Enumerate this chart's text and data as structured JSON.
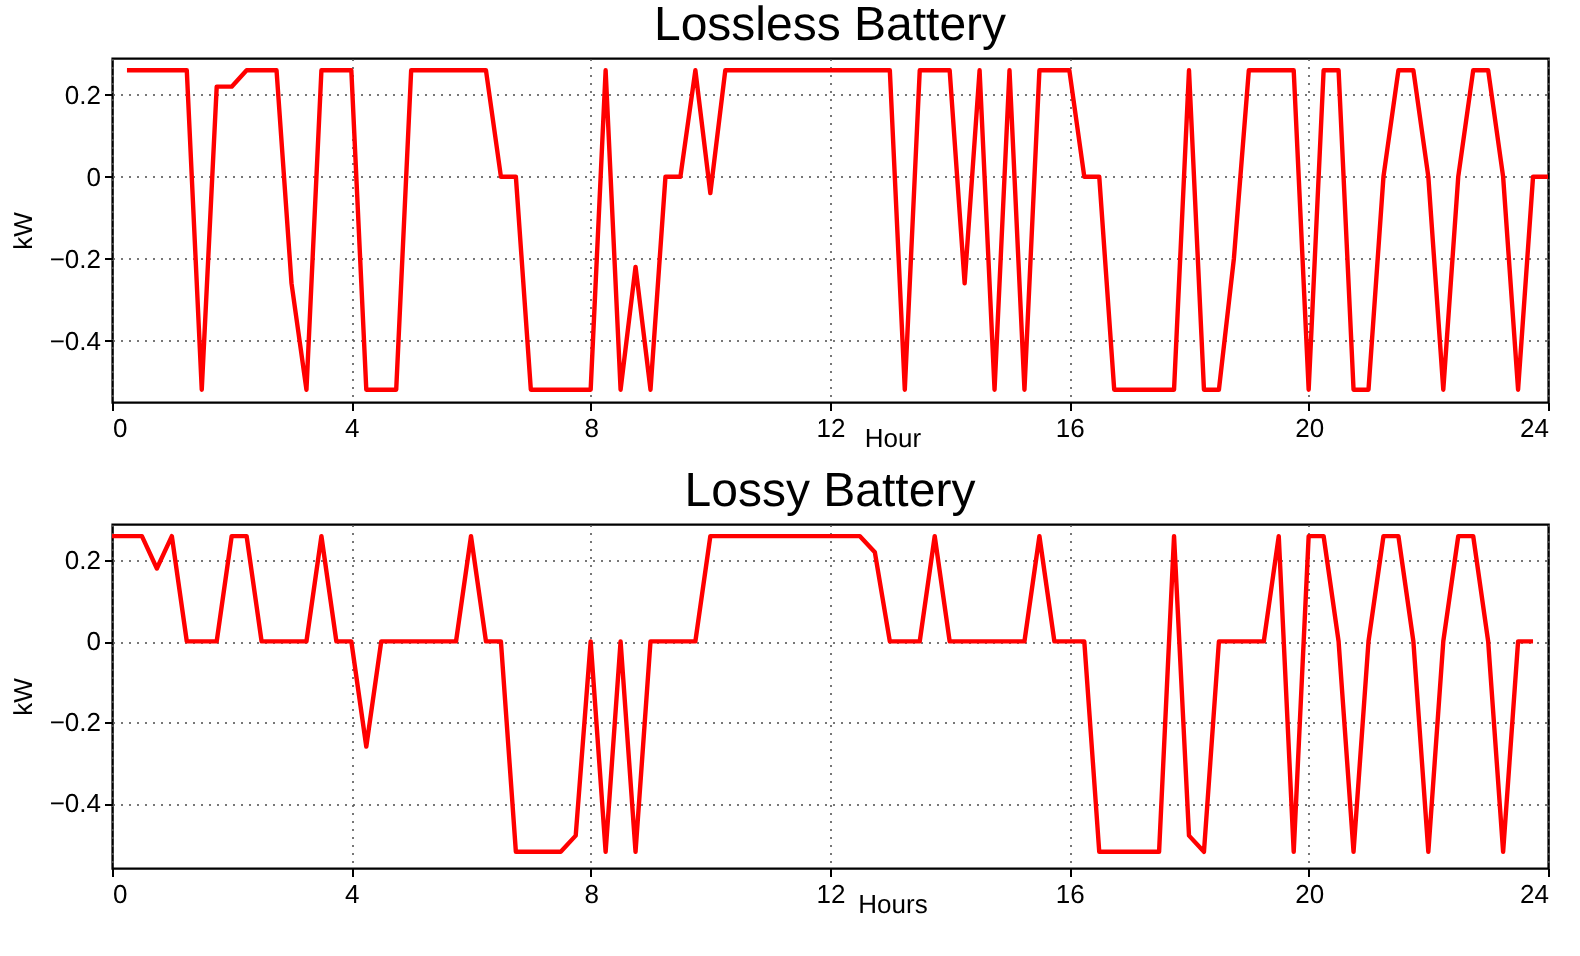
{
  "chart_data": [
    {
      "type": "line",
      "title": "Lossless Battery",
      "xlabel": "Hour",
      "ylabel": "kW",
      "xlim": [
        0,
        24
      ],
      "xticks": [
        0,
        4,
        8,
        12,
        16,
        20,
        24
      ],
      "ylim": [
        -0.55,
        0.29
      ],
      "yticks": [
        -0.4,
        -0.2,
        0,
        0.2
      ],
      "grid": true,
      "line_style": "solid",
      "series": [
        {
          "color": "#ff0000",
          "x": [
            0.25,
            1.25,
            1.5,
            1.75,
            2.0,
            2.25,
            2.75,
            3.0,
            3.25,
            3.5,
            4.0,
            4.25,
            4.75,
            5.0,
            6.25,
            6.5,
            6.75,
            7.0,
            8.0,
            8.25,
            8.5,
            8.75,
            9.0,
            9.25,
            9.5,
            9.75,
            10.0,
            10.25,
            13.0,
            13.25,
            13.5,
            14.0,
            14.25,
            14.5,
            14.75,
            15.0,
            15.25,
            15.5,
            16.0,
            16.25,
            16.5,
            16.75,
            17.75,
            18.0,
            18.25,
            18.5,
            18.75,
            19.0,
            19.75,
            20.0,
            20.25,
            20.5,
            20.75,
            21.0,
            21.25,
            21.5,
            21.75,
            22.0,
            22.25,
            22.5,
            22.75,
            23.0,
            23.25,
            23.5,
            23.75,
            24.0
          ],
          "values": [
            0.26,
            0.26,
            -0.52,
            0.22,
            0.22,
            0.26,
            0.26,
            -0.26,
            -0.52,
            0.26,
            0.26,
            -0.52,
            -0.52,
            0.26,
            0.26,
            0,
            0,
            -0.52,
            -0.52,
            0.26,
            -0.52,
            -0.22,
            -0.52,
            0,
            0,
            0.26,
            -0.04,
            0.26,
            0.26,
            -0.52,
            0.26,
            0.26,
            -0.26,
            0.26,
            -0.52,
            0.26,
            -0.52,
            0.26,
            0.26,
            0,
            0,
            -0.52,
            -0.52,
            0.26,
            -0.52,
            -0.52,
            -0.2,
            0.26,
            0.26,
            -0.52,
            0.26,
            0.26,
            -0.52,
            -0.52,
            0,
            0.26,
            0.26,
            0,
            -0.52,
            0,
            0.26,
            0.26,
            0,
            -0.52,
            0,
            0
          ]
        }
      ]
    },
    {
      "type": "line",
      "title": "Lossy Battery",
      "xlabel": "Hours",
      "ylabel": "kW",
      "xlim": [
        0,
        24
      ],
      "xticks": [
        0,
        4,
        8,
        12,
        16,
        20,
        24
      ],
      "ylim": [
        -0.56,
        0.29
      ],
      "yticks": [
        -0.4,
        -0.2,
        0,
        0.2
      ],
      "grid": true,
      "line_style": "solid",
      "series": [
        {
          "color": "#ff0000",
          "x": [
            0.0,
            0.5,
            0.75,
            1.0,
            1.25,
            1.75,
            2.0,
            2.25,
            2.5,
            3.25,
            3.5,
            3.75,
            4.0,
            4.25,
            4.5,
            5.75,
            6.0,
            6.25,
            6.5,
            6.75,
            7.5,
            7.75,
            8.0,
            8.25,
            8.5,
            8.75,
            9.0,
            9.75,
            10.0,
            12.5,
            12.75,
            13.0,
            13.5,
            13.75,
            14.0,
            15.25,
            15.5,
            15.75,
            16.25,
            16.5,
            17.5,
            17.75,
            18.0,
            18.25,
            18.5,
            19.25,
            19.5,
            19.75,
            20.0,
            20.25,
            20.5,
            20.75,
            21.0,
            21.25,
            21.5,
            21.75,
            22.0,
            22.25,
            22.5,
            22.75,
            23.0,
            23.25,
            23.5,
            23.75
          ],
          "values": [
            0.26,
            0.26,
            0.18,
            0.26,
            0,
            0,
            0.26,
            0.26,
            0,
            0,
            0.26,
            0,
            0,
            -0.26,
            0,
            0,
            0.26,
            0,
            0,
            -0.52,
            -0.52,
            -0.48,
            0,
            -0.52,
            0,
            -0.52,
            0,
            0,
            0.26,
            0.26,
            0.22,
            0,
            0,
            0.26,
            0,
            0,
            0.26,
            0,
            0,
            -0.52,
            -0.52,
            0.26,
            -0.48,
            -0.52,
            0,
            0,
            0.26,
            -0.52,
            0.26,
            0.26,
            0,
            -0.52,
            0,
            0.26,
            0.26,
            0,
            -0.52,
            0,
            0.26,
            0.26,
            0,
            -0.52,
            0,
            0
          ]
        }
      ]
    }
  ]
}
